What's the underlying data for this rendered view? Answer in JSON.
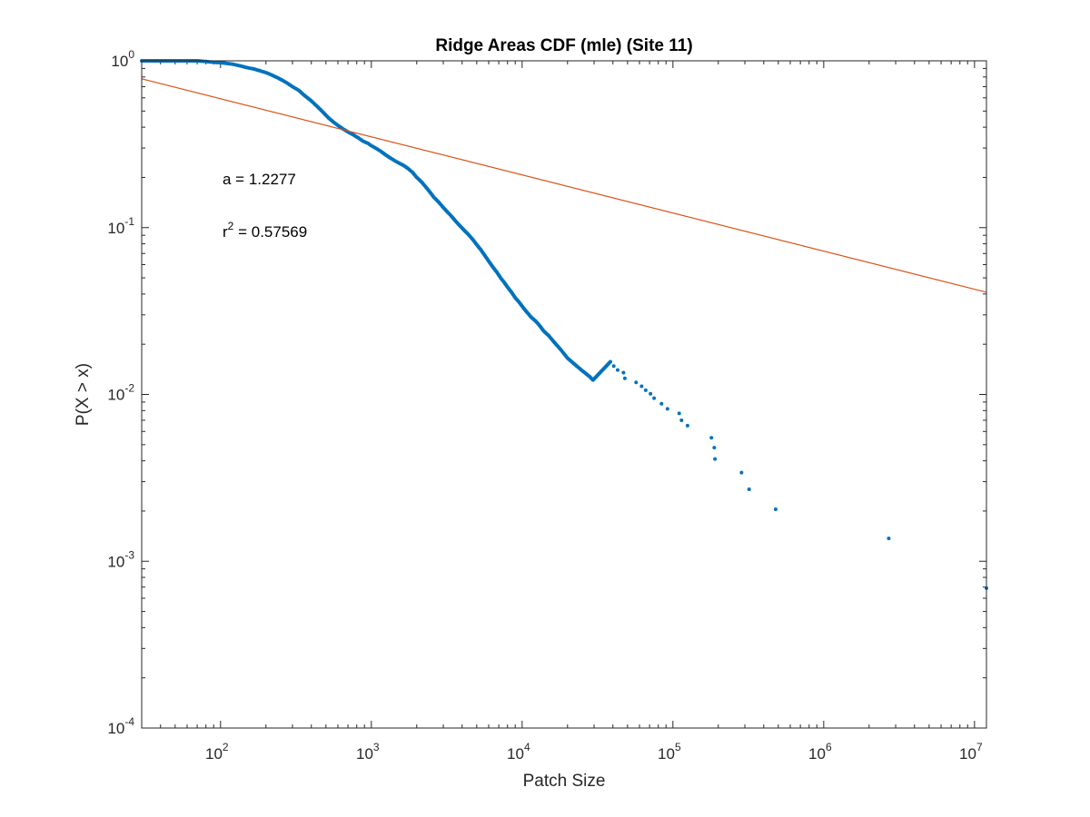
{
  "chart_data": {
    "type": "scatter",
    "title": "Ridge Areas CDF (mle) (Site 11)",
    "xlabel": "Patch Size",
    "ylabel": "P(X > x)",
    "xscale": "log",
    "yscale": "log",
    "xlim": [
      30,
      12000000
    ],
    "ylim": [
      0.0001,
      1
    ],
    "x_ticks": [
      {
        "base": "10",
        "exp": "2",
        "value": 100
      },
      {
        "base": "10",
        "exp": "3",
        "value": 1000
      },
      {
        "base": "10",
        "exp": "4",
        "value": 10000
      },
      {
        "base": "10",
        "exp": "5",
        "value": 100000
      },
      {
        "base": "10",
        "exp": "6",
        "value": 1000000
      },
      {
        "base": "10",
        "exp": "7",
        "value": 10000000
      }
    ],
    "y_ticks": [
      {
        "base": "10",
        "exp": "0",
        "value": 1
      },
      {
        "base": "10",
        "exp": "-1",
        "value": 0.1
      },
      {
        "base": "10",
        "exp": "-2",
        "value": 0.01
      },
      {
        "base": "10",
        "exp": "-3",
        "value": 0.001
      },
      {
        "base": "10",
        "exp": "-4",
        "value": 0.0001
      }
    ],
    "grid": false,
    "box": true,
    "annotations": {
      "a_text": "a = 1.2277",
      "r2_base": "r",
      "r2_exp": "2",
      "r2_value": " = 0.57569"
    },
    "series": [
      {
        "type": "scatter",
        "color": "#0072BD",
        "marker_size": 2,
        "x": [
          30,
          35,
          40,
          45,
          50,
          55,
          60,
          65,
          70,
          75,
          80,
          85,
          90,
          100,
          110,
          120,
          130,
          140,
          150,
          165,
          180,
          200,
          220,
          240,
          260,
          280,
          300,
          330,
          360,
          400,
          440,
          480,
          520,
          560,
          600,
          650,
          700,
          760,
          820,
          880,
          950,
          1000,
          1080,
          1160,
          1250,
          1350,
          1450,
          1550,
          1650,
          1750,
          1870,
          2000,
          2150,
          2300,
          2450,
          2600,
          2800,
          3000,
          3200,
          3400,
          3600,
          3850,
          4100,
          4400,
          4700,
          5000,
          5300,
          5600,
          6000,
          6400,
          6800,
          7200,
          7600,
          8000,
          8500,
          9000,
          9600,
          10200,
          10800,
          11500,
          12300,
          13000,
          13900,
          15000,
          16000,
          17000,
          18000,
          19000,
          20000,
          21500,
          23000,
          24500,
          26000,
          28000,
          29500,
          38500,
          40500,
          43000,
          47000,
          48000,
          57000,
          62000,
          66000,
          71000,
          75000,
          84000,
          92000,
          110000,
          114000,
          125000,
          180000,
          188000,
          190000,
          285000,
          320000,
          480000,
          2700000,
          12000000
        ],
        "y": [
          1.0,
          1.0,
          1.0,
          1.0,
          1.0,
          1.0,
          1.0,
          1.0,
          1.0,
          0.995,
          0.99,
          0.985,
          0.98,
          0.975,
          0.965,
          0.955,
          0.94,
          0.925,
          0.91,
          0.895,
          0.875,
          0.85,
          0.82,
          0.79,
          0.76,
          0.73,
          0.7,
          0.665,
          0.62,
          0.575,
          0.53,
          0.49,
          0.455,
          0.43,
          0.41,
          0.39,
          0.375,
          0.36,
          0.345,
          0.33,
          0.32,
          0.31,
          0.298,
          0.286,
          0.272,
          0.26,
          0.25,
          0.242,
          0.235,
          0.226,
          0.215,
          0.2,
          0.188,
          0.175,
          0.163,
          0.152,
          0.142,
          0.132,
          0.124,
          0.117,
          0.11,
          0.103,
          0.097,
          0.091,
          0.085,
          0.079,
          0.074,
          0.069,
          0.063,
          0.058,
          0.054,
          0.05,
          0.047,
          0.044,
          0.041,
          0.038,
          0.0355,
          0.033,
          0.031,
          0.029,
          0.0275,
          0.026,
          0.024,
          0.0225,
          0.021,
          0.0197,
          0.0186,
          0.0175,
          0.0165,
          0.0156,
          0.0148,
          0.0141,
          0.0135,
          0.0128,
          0.0122,
          0.0157,
          0.0148,
          0.014,
          0.0135,
          0.0125,
          0.0118,
          0.0112,
          0.0106,
          0.0101,
          0.0095,
          0.0088,
          0.0082,
          0.0077,
          0.007,
          0.0065,
          0.0055,
          0.0048,
          0.0041,
          0.0034,
          0.0027,
          0.00205,
          0.00137,
          0.00069
        ]
      },
      {
        "type": "line",
        "color": "#D95319",
        "x": [
          30,
          12000000
        ],
        "y": [
          0.78,
          0.041
        ]
      }
    ]
  }
}
